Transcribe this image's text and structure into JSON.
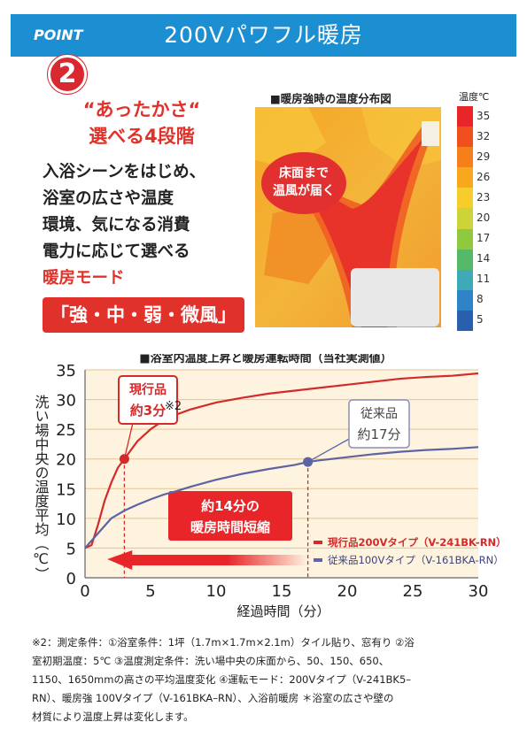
{
  "header": {
    "point_label": "POINT",
    "point_number": "2",
    "title": "200Vパワフル暖房"
  },
  "intro": {
    "headline_1": "“あったかさ“",
    "headline_2": "選べる4段階",
    "body_lines": [
      "入浴シーンをはじめ、",
      "浴室の広さや温度",
      "環境、気になる消費",
      "電力に応じて選べる"
    ],
    "mode_word": "暖房モード",
    "mode_box": "「強・中・弱・微風」"
  },
  "heatmap": {
    "title": "■暖房強時の温度分布図",
    "scale_title": "温度℃",
    "scale_labels": [
      "35",
      "32",
      "29",
      "26",
      "23",
      "20",
      "17",
      "14",
      "11",
      "8",
      "5"
    ],
    "scale_colors": [
      "#e8262a",
      "#f0501e",
      "#f57f1a",
      "#f7a81c",
      "#f6cd2a",
      "#cdd43a",
      "#8fca3e",
      "#56b96a",
      "#3eaab8",
      "#2e84c6",
      "#2a5fb0"
    ],
    "bubble_line_1": "床面まで",
    "bubble_line_2": "温風が届く"
  },
  "chart_data": {
    "type": "line",
    "title": "■浴室内温度上昇と暖房運転時間（当社実測値）",
    "xlabel": "経過時間（分）",
    "ylabel": "洗い場中央の温度平均（℃）",
    "xlim": [
      0,
      30
    ],
    "ylim": [
      0,
      35
    ],
    "x_ticks": [
      0,
      5,
      10,
      15,
      20,
      25,
      30
    ],
    "y_ticks": [
      0,
      5,
      10,
      15,
      20,
      25,
      30,
      35
    ],
    "series": [
      {
        "name": "現行品200Vタイプ（V-241BK-RN）",
        "color": "#d42a2a",
        "x": [
          0,
          0.5,
          1,
          1.5,
          2,
          2.5,
          3,
          4,
          5,
          6,
          7,
          8,
          10,
          12,
          14,
          16,
          18,
          20,
          22,
          24,
          26,
          28,
          30
        ],
        "y": [
          5,
          5.5,
          9,
          13,
          16,
          18.5,
          20,
          23,
          25,
          26.5,
          27.5,
          28.3,
          29.5,
          30.3,
          31,
          31.5,
          32,
          32.5,
          33,
          33.5,
          33.8,
          34,
          34.4
        ]
      },
      {
        "name": "従来品100Vタイプ（V-161BKA-RN）",
        "color": "#5d63a3",
        "x": [
          0,
          1,
          2,
          3,
          4,
          5,
          6,
          7,
          8,
          10,
          12,
          14,
          16,
          17,
          18,
          20,
          22,
          24,
          26,
          28,
          30
        ],
        "y": [
          5,
          7.5,
          10,
          11.3,
          12.3,
          13.2,
          14,
          14.6,
          15.3,
          16.5,
          17.5,
          18.3,
          19,
          19.5,
          19.8,
          20.3,
          20.8,
          21.2,
          21.5,
          21.7,
          22
        ]
      }
    ],
    "markers": [
      {
        "series": 0,
        "x": 3,
        "y": 20
      },
      {
        "series": 1,
        "x": 17,
        "y": 19.5
      }
    ],
    "annotations": {
      "current_label_1": "現行品",
      "current_label_2": "約3分",
      "note_mark": "※2",
      "old_label_1": "従来品",
      "old_label_2": "約17分",
      "arrow_line_1": "約14分の",
      "arrow_line_2": "暖房時間短縮"
    }
  },
  "footnote": {
    "lines": [
      "※2：測定条件：①浴室条件：1坪（1.7m×1.7m×2.1m）タイル貼り、窓有り ②浴",
      "室初期温度：5℃ ③温度測定条件：洗い場中央の床面から、50、150、650、",
      "1150、1650mmの高さの平均温度変化 ④運転モード：200Vタイプ（V-241BK5–",
      "RN）、暖房強 100Vタイプ（V-161BKA–RN）、入浴前暖房 ＊浴室の広さや壁の",
      "材質により温度上昇は変化します。"
    ]
  }
}
